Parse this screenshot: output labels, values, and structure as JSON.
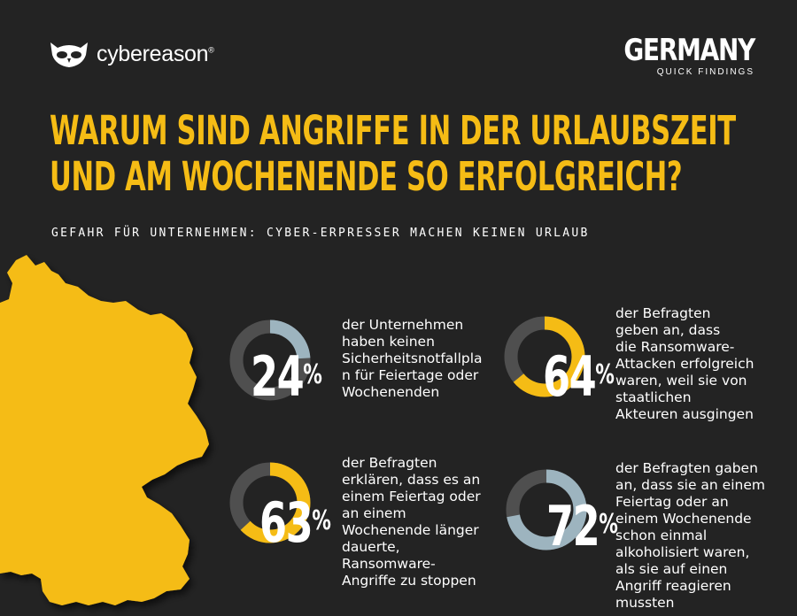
{
  "brand": {
    "name": "cybereason",
    "trademark": "®"
  },
  "country": {
    "title": "GERMANY",
    "subtitle": "QUICK FINDINGS"
  },
  "headline": {
    "line1": "WARUM SIND ANGRIFFE IN DER URLAUBSZEIT",
    "line2": "UND AM WOCHENENDE SO ERFOLGREICH?"
  },
  "subheadline": "GEFAHR FÜR UNTERNEHMEN: CYBER-ERPRESSER MACHEN KEINEN URLAUB",
  "colors": {
    "background": "#232323",
    "accent": "#f5bc15",
    "ring_blue": "#9db4bf",
    "ring_track": "#4f4f4f",
    "map": "#f5bc15"
  },
  "stats": [
    {
      "value": "24",
      "percent_sign": "%",
      "fraction": 0.24,
      "ring_color": "blue",
      "lines": [
        "der Unternehmen",
        "haben keinen",
        "Sicherheitsnotfallpla",
        "n für Feiertage oder",
        "Wochenenden"
      ]
    },
    {
      "value": "64",
      "percent_sign": "%",
      "fraction": 0.64,
      "ring_color": "yellow",
      "lines": [
        "der Befragten",
        "geben an, dass",
        "die Ransomware-",
        "Attacken erfolgreich",
        "waren, weil sie von",
        "staatlichen",
        "Akteuren ausgingen"
      ]
    },
    {
      "value": "63",
      "percent_sign": "%",
      "fraction": 0.63,
      "ring_color": "yellow",
      "lines": [
        "der Befragten",
        "erklären, dass es an",
        "einem Feiertag oder",
        "an einem",
        "Wochenende länger",
        "dauerte,",
        "Ransomware-",
        "Angriffe zu stoppen"
      ]
    },
    {
      "value": "72",
      "percent_sign": "%",
      "fraction": 0.72,
      "ring_color": "blue",
      "lines": [
        "der Befragten gaben",
        "an, dass sie an einem",
        "Feiertag oder an",
        "einem Wochenende",
        "schon einmal",
        "alkoholisiert waren,",
        "als sie auf einen",
        "Angriff reagieren",
        "mussten"
      ]
    }
  ]
}
